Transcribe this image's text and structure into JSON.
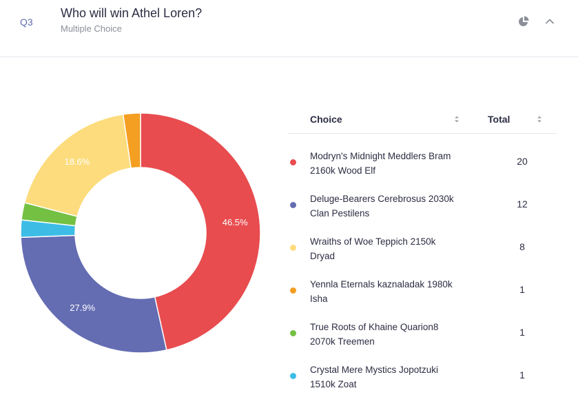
{
  "question": {
    "number": "Q3",
    "title": "Who will win Athel Loren?",
    "type": "Multiple Choice"
  },
  "table": {
    "choice_header": "Choice",
    "total_header": "Total"
  },
  "icons": {
    "chart_toggle": "pie-chart-icon",
    "collapse": "chevron-up-icon",
    "sort": "sort-icon"
  },
  "chart_data": {
    "type": "pie",
    "donut": true,
    "categories": [
      "Modryn's Midnight Meddlers Bram 2160k Wood Elf",
      "Deluge-Bearers Cerebrosus 2030k Clan Pestilens",
      "Crystal Mere Mystics Jopotzuki 1510k Zoat",
      "True Roots of Khaine Quarion8 2070k Treemen",
      "Wraiths of Woe Teppich 2150k Dryad",
      "Yennla Eternals kaznaladak 1980k Isha"
    ],
    "values": [
      20,
      12,
      1,
      1,
      8,
      1
    ],
    "slice_labels": [
      "46.5%",
      "27.9%",
      "",
      "",
      "18.6%",
      ""
    ],
    "colors": [
      "#e84c4f",
      "#646cb2",
      "#3dbde6",
      "#74c043",
      "#fcdc7c",
      "#f49e22"
    ],
    "start": "top",
    "direction": "clockwise"
  },
  "rows": [
    {
      "label": "Modryn's Midnight Meddlers Bram 2160k Wood Elf",
      "total": "20",
      "color": "#e84c4f"
    },
    {
      "label": "Deluge-Bearers Cerebrosus 2030k Clan Pestilens",
      "total": "12",
      "color": "#646cb2"
    },
    {
      "label": "Wraiths of Woe Teppich 2150k Dryad",
      "total": "8",
      "color": "#fcdc7c"
    },
    {
      "label": "Yennla Eternals kaznaladak 1980k Isha",
      "total": "1",
      "color": "#f49e22"
    },
    {
      "label": "True Roots of Khaine Quarion8 2070k Treemen",
      "total": "1",
      "color": "#74c043"
    },
    {
      "label": "Crystal Mere Mystics Jopotzuki 1510k Zoat",
      "total": "1",
      "color": "#3dbde6"
    }
  ]
}
